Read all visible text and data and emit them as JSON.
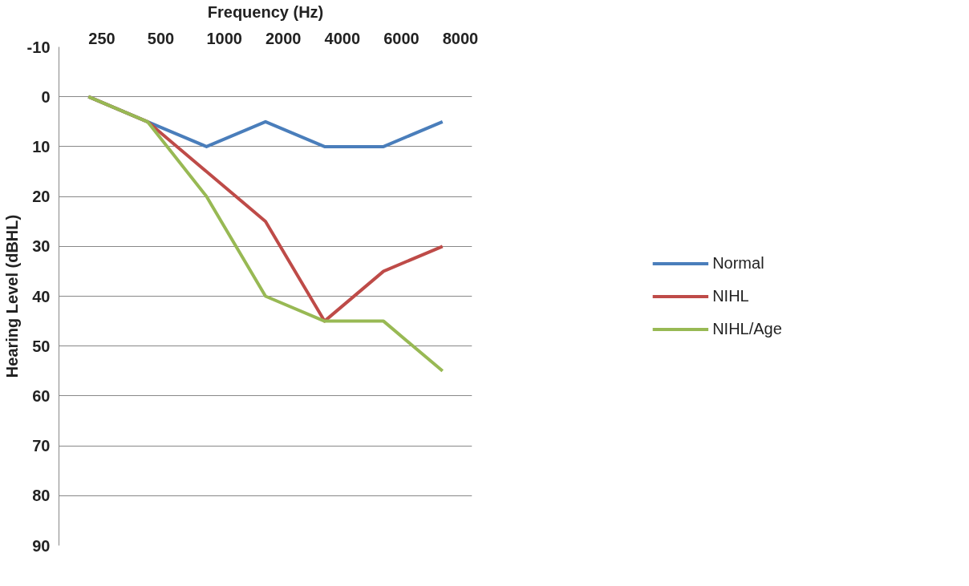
{
  "chart_data": {
    "type": "line",
    "xlabel": "Frequency (Hz)",
    "ylabel": "Hearing Level (dBHL)",
    "categories": [
      "250",
      "500",
      "1000",
      "2000",
      "4000",
      "6000",
      "8000"
    ],
    "series": [
      {
        "name": "Normal",
        "color": "#4a7ebb",
        "values": [
          0,
          5,
          10,
          5,
          10,
          10,
          5
        ]
      },
      {
        "name": "NIHL",
        "color": "#be4b48",
        "values": [
          0,
          5,
          15,
          25,
          45,
          35,
          30
        ]
      },
      {
        "name": "NIHL/Age",
        "color": "#98b954",
        "values": [
          0,
          5,
          20,
          40,
          45,
          45,
          55
        ]
      }
    ],
    "ylim": [
      90,
      -10
    ],
    "yticks": [
      {
        "value": -10,
        "label": "-10"
      },
      0,
      10,
      20,
      30,
      40,
      50,
      60,
      70,
      80,
      90
    ],
    "grid": "y",
    "legend": "right",
    "marker": "none",
    "line_style": "solid"
  }
}
